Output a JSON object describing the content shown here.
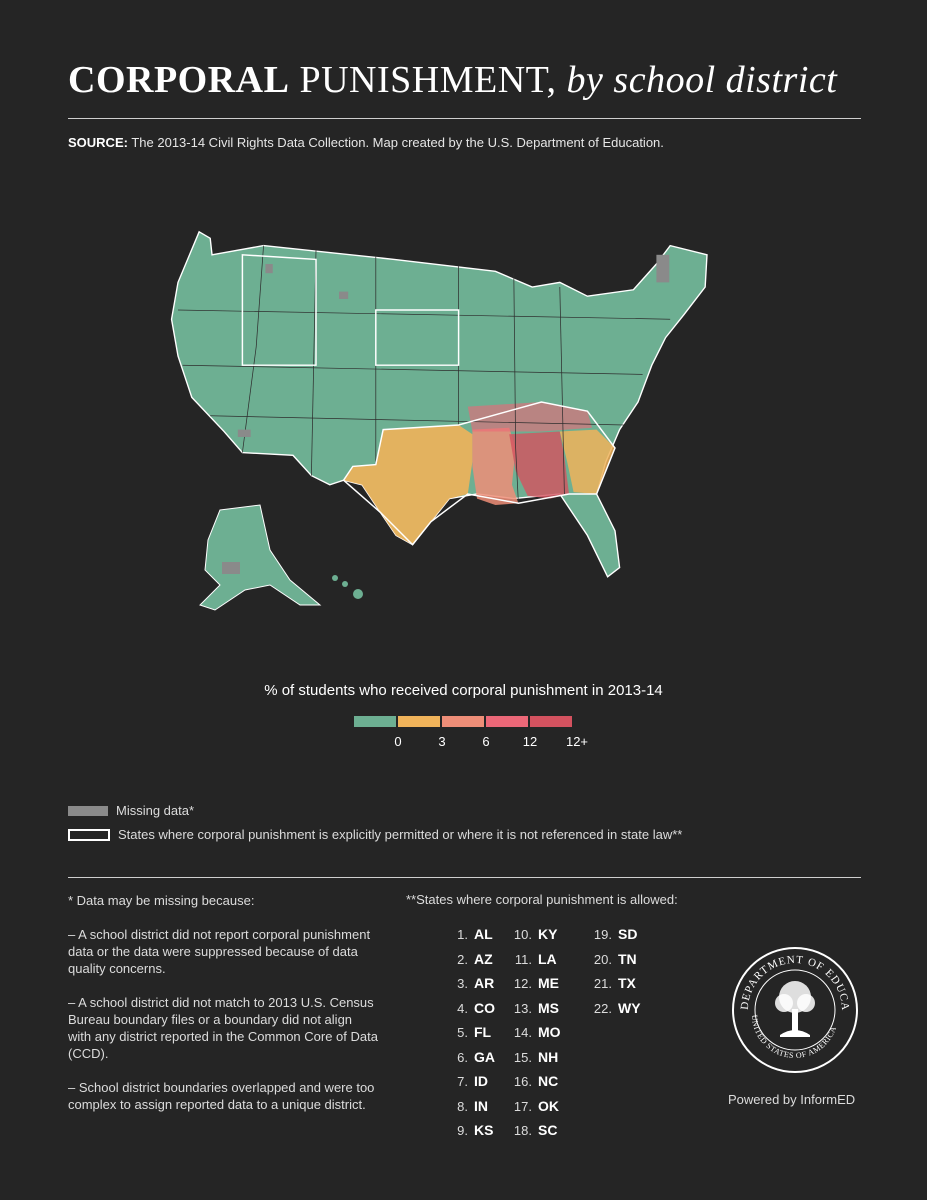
{
  "title": {
    "bold": "CORPORAL",
    "regular": "PUNISHMENT,",
    "italic": "by school district"
  },
  "source": {
    "label": "SOURCE:",
    "text": "The 2013-14 Civil Rights Data Collection. Map created by the U.S. Department of Education."
  },
  "legend": {
    "title": "% of students who received corporal punishment in 2013-14",
    "colors": [
      "#6daf92",
      "#f0b35a",
      "#ee8e78",
      "#ec6878",
      "#d4525f"
    ],
    "ticks": [
      "0",
      "3",
      "6",
      "12",
      "12+"
    ]
  },
  "key": {
    "missing": "Missing data*",
    "outline": "States where corporal punishment is explicitly permitted or where it is not referenced in state law**",
    "missing_color": "#8a8a8a"
  },
  "notes": {
    "intro": "* Data may be missing because:",
    "items": [
      "– A school district did not report corporal punishment data or the data were suppressed because of data quality concerns.",
      "– A school district did not match to 2013 U.S. Census Bureau boundary files or a boundary did not align with any district reported in the Common Core of Data (CCD).",
      "– School district boundaries overlapped and were too complex to assign reported data to a unique district."
    ]
  },
  "states_allowed": {
    "heading": "**States where corporal punishment is allowed:",
    "list": [
      {
        "n": "1.",
        "s": "AL"
      },
      {
        "n": "2.",
        "s": "AZ"
      },
      {
        "n": "3.",
        "s": "AR"
      },
      {
        "n": "4.",
        "s": "CO"
      },
      {
        "n": "5.",
        "s": "FL"
      },
      {
        "n": "6.",
        "s": "GA"
      },
      {
        "n": "7.",
        "s": "ID"
      },
      {
        "n": "8.",
        "s": "IN"
      },
      {
        "n": "9.",
        "s": "KS"
      },
      {
        "n": "10.",
        "s": "KY"
      },
      {
        "n": "11.",
        "s": "LA"
      },
      {
        "n": "12.",
        "s": "ME"
      },
      {
        "n": "13.",
        "s": "MS"
      },
      {
        "n": "14.",
        "s": "MO"
      },
      {
        "n": "15.",
        "s": "NH"
      },
      {
        "n": "16.",
        "s": "NC"
      },
      {
        "n": "17.",
        "s": "OK"
      },
      {
        "n": "18.",
        "s": "SC"
      },
      {
        "n": "19.",
        "s": "SD"
      },
      {
        "n": "20.",
        "s": "TN"
      },
      {
        "n": "21.",
        "s": "TX"
      },
      {
        "n": "22.",
        "s": "WY"
      }
    ]
  },
  "seal": {
    "top_text": "DEPARTMENT OF EDUCATION",
    "bottom_text": "UNITED STATES OF AMERICA"
  },
  "footer": {
    "powered": "Powered by InformED"
  },
  "map_colors": {
    "base": "#6daf92",
    "border": "#ffffff",
    "state_line": "#2e2e2e"
  }
}
